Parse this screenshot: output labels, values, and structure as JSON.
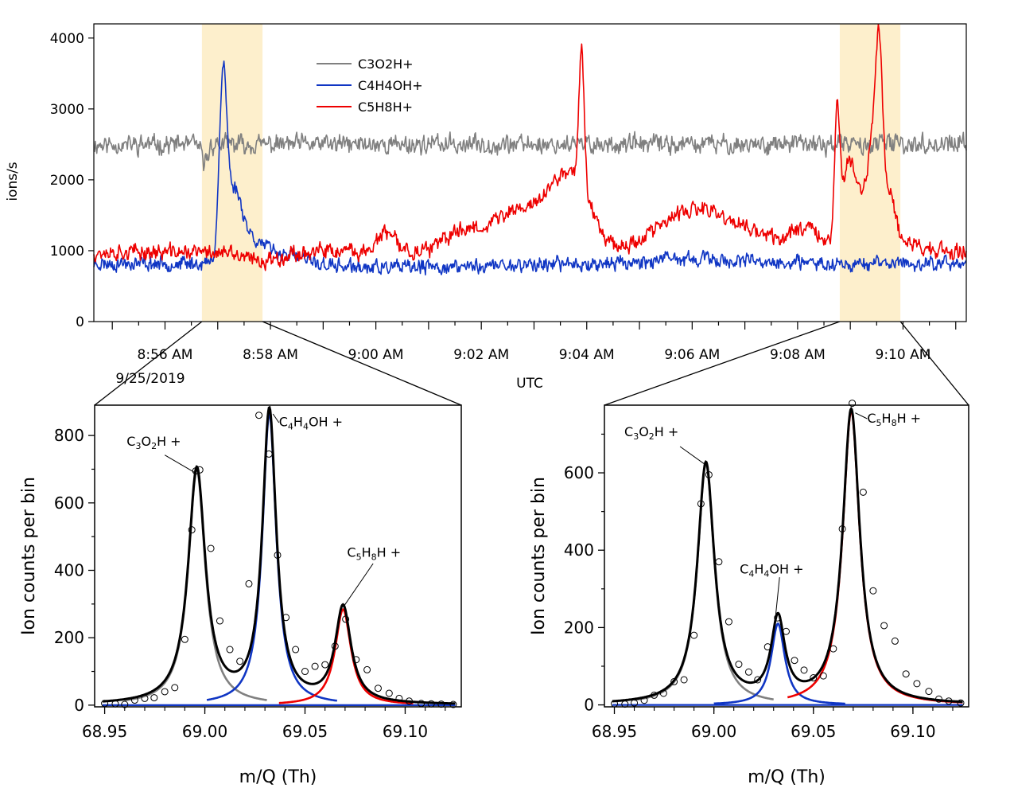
{
  "chart_data": [
    {
      "type": "line",
      "name": "timeseries",
      "ylabel": "ions/s",
      "xlabel": "UTC",
      "ylim": [
        0,
        4200
      ],
      "xlim_minutes": [
        -0.35,
        16.2
      ],
      "y_ticks": [
        0,
        1000,
        2000,
        3000,
        4000
      ],
      "x_ticks": [
        {
          "minute": 1,
          "label": "8:56 AM"
        },
        {
          "minute": 3,
          "label": "8:58 AM"
        },
        {
          "minute": 5,
          "label": "9:00 AM"
        },
        {
          "minute": 7,
          "label": "9:02 AM"
        },
        {
          "minute": 9,
          "label": "9:04 AM"
        },
        {
          "minute": 11,
          "label": "9:06 AM"
        },
        {
          "minute": 13,
          "label": "9:08 AM"
        },
        {
          "minute": 15,
          "label": "9:10 AM"
        }
      ],
      "date_label": "9/25/2019",
      "x_origin_time": "8:55 AM",
      "highlight_windows_minutes": [
        [
          1.7,
          2.85
        ],
        [
          13.8,
          14.95
        ]
      ],
      "highlight_color": "#fdefcc",
      "legend": [
        {
          "name": "C3O2H+",
          "color": "#808080"
        },
        {
          "name": "C4H4OH+",
          "color": "#1036c4"
        },
        {
          "name": "C5H8H+",
          "color": "#ee0000"
        }
      ],
      "series": [
        {
          "name": "C3O2H+",
          "color": "#808080",
          "baseline": 2500,
          "noise": 260,
          "seed": 11,
          "features": [
            [
              1.75,
              -250,
              0.06
            ]
          ]
        },
        {
          "name": "C4H4OH+",
          "color": "#1036c4",
          "baseline": 820,
          "noise": 200,
          "seed": 23,
          "features": [
            [
              2.1,
              2400,
              0.07
            ],
            [
              2.3,
              900,
              0.15
            ],
            [
              2.6,
              300,
              0.25
            ],
            [
              3.2,
              150,
              0.4
            ],
            [
              5.5,
              -60,
              1.5
            ],
            [
              11.0,
              60,
              0.8
            ]
          ]
        },
        {
          "name": "C5H8H+",
          "color": "#ee0000",
          "baseline": 980,
          "noise": 220,
          "seed": 37,
          "features": [
            [
              2.8,
              -120,
              0.35
            ],
            [
              5.2,
              260,
              0.18
            ],
            [
              6.6,
              250,
              0.3
            ],
            [
              7.4,
              320,
              0.45
            ],
            [
              8.2,
              520,
              0.55
            ],
            [
              8.75,
              800,
              0.35
            ],
            [
              8.9,
              1900,
              0.05
            ],
            [
              10.3,
              140,
              0.4
            ],
            [
              11.1,
              540,
              0.55
            ],
            [
              12.2,
              220,
              0.6
            ],
            [
              13.2,
              330,
              0.25
            ],
            [
              13.75,
              1800,
              0.05
            ],
            [
              13.95,
              1000,
              0.12
            ],
            [
              14.2,
              700,
              0.18
            ],
            [
              14.45,
              1300,
              0.1
            ],
            [
              14.55,
              1850,
              0.06
            ],
            [
              14.7,
              800,
              0.12
            ],
            [
              15.0,
              160,
              0.3
            ]
          ]
        }
      ]
    },
    {
      "type": "line",
      "name": "spectrum-left",
      "xlabel": "m/Q (Th)",
      "ylabel": "Ion counts per bin",
      "xlim": [
        68.945,
        69.128
      ],
      "ylim": [
        -5,
        890
      ],
      "x_ticks": [
        68.95,
        69.0,
        69.05,
        69.1
      ],
      "x_tick_labels": [
        "68.95",
        "69.00",
        "69.05",
        "69.10"
      ],
      "y_ticks": [
        0,
        200,
        400,
        600,
        800
      ],
      "peaks": [
        {
          "name": "C3O2H+",
          "center": 68.996,
          "height": 695,
          "width": 0.0052,
          "color": "#808080",
          "range": [
            68.96,
            69.031
          ]
        },
        {
          "name": "C4H4OH+",
          "center": 69.0322,
          "height": 865,
          "width": 0.0042,
          "color": "#1036c4",
          "range": [
            69.001,
            69.066
          ]
        },
        {
          "name": "C5H8H+",
          "center": 69.069,
          "height": 284,
          "width": 0.0048,
          "color": "#ee0000",
          "range": [
            69.037,
            69.104
          ]
        }
      ],
      "fit_color": "#000000",
      "points_x": [
        68.95,
        68.9553,
        68.96,
        68.965,
        68.97,
        68.9747,
        68.98,
        68.985,
        68.99,
        68.9935,
        68.9955,
        68.9975,
        69.003,
        69.0075,
        69.0125,
        69.0175,
        69.022,
        69.027,
        69.032,
        69.0363,
        69.0405,
        69.0453,
        69.05,
        69.055,
        69.06,
        69.065,
        69.0703,
        69.0755,
        69.081,
        69.0865,
        69.092,
        69.097,
        69.102,
        69.108,
        69.113,
        69.118,
        69.124
      ],
      "points_y": [
        5,
        4,
        2,
        15,
        20,
        22,
        40,
        52,
        195,
        520,
        695,
        698,
        465,
        250,
        165,
        130,
        360,
        860,
        745,
        445,
        260,
        165,
        100,
        115,
        120,
        175,
        255,
        135,
        105,
        50,
        35,
        20,
        12,
        5,
        4,
        3,
        2
      ],
      "labels": [
        {
          "text": "C3O2H+",
          "base": "C",
          "parts": [
            [
              "3",
              true
            ],
            [
              "O",
              false
            ],
            [
              "2",
              true
            ],
            [
              "H +",
              false
            ]
          ],
          "tx": 68.961,
          "ty": 770,
          "lx0": 68.98,
          "ly0": 742,
          "lx1": 68.995,
          "ly1": 690
        },
        {
          "text": "C4H4OH+",
          "base": "C",
          "parts": [
            [
              "4",
              true
            ],
            [
              "H",
              false
            ],
            [
              "4",
              true
            ],
            [
              "OH +",
              false
            ]
          ],
          "tx": 69.037,
          "ty": 828,
          "lx0": 69.037,
          "ly0": 838,
          "lx1": 69.034,
          "ly1": 864
        },
        {
          "text": "C5H8H+",
          "base": "C",
          "parts": [
            [
              "5",
              true
            ],
            [
              "H",
              false
            ],
            [
              "8",
              true
            ],
            [
              "H +",
              false
            ]
          ],
          "tx": 69.071,
          "ty": 440,
          "lx0": 69.084,
          "ly0": 420,
          "lx1": 69.069,
          "ly1": 290
        }
      ]
    },
    {
      "type": "line",
      "name": "spectrum-right",
      "xlabel": "m/Q (Th)",
      "ylabel": "Ion counts per bin",
      "xlim": [
        68.945,
        69.128
      ],
      "ylim": [
        -5,
        775
      ],
      "x_ticks": [
        68.95,
        69.0,
        69.05,
        69.1
      ],
      "x_tick_labels": [
        "68.95",
        "69.00",
        "69.05",
        "69.10"
      ],
      "y_ticks": [
        0,
        200,
        400,
        600
      ],
      "peaks": [
        {
          "name": "C3O2H+",
          "center": 68.996,
          "height": 622,
          "width": 0.0052,
          "color": "#808080",
          "range": [
            68.96,
            69.03
          ]
        },
        {
          "name": "C4H4OH+",
          "center": 69.0322,
          "height": 210,
          "width": 0.0042,
          "color": "#1036c4",
          "range": [
            69.0,
            69.066
          ]
        },
        {
          "name": "C5H8H+",
          "center": 69.069,
          "height": 760,
          "width": 0.0052,
          "color": "#ee0000",
          "range": [
            69.037,
            69.125
          ]
        }
      ],
      "fit_color": "#000000",
      "points_x": [
        68.95,
        68.9553,
        68.96,
        68.965,
        68.97,
        68.9747,
        68.98,
        68.985,
        68.99,
        68.9935,
        68.9975,
        69.0025,
        69.0075,
        69.0125,
        69.0175,
        69.022,
        69.027,
        69.032,
        69.0363,
        69.0405,
        69.0453,
        69.05,
        69.055,
        69.06,
        69.0645,
        69.0695,
        69.075,
        69.08,
        69.0855,
        69.091,
        69.0965,
        69.102,
        69.108,
        69.113,
        69.118,
        69.124
      ],
      "points_y": [
        3,
        2,
        5,
        12,
        25,
        30,
        60,
        65,
        180,
        520,
        595,
        370,
        215,
        105,
        85,
        65,
        150,
        225,
        190,
        115,
        90,
        70,
        75,
        145,
        455,
        780,
        550,
        295,
        205,
        165,
        80,
        55,
        35,
        15,
        10,
        5
      ],
      "labels": [
        {
          "text": "C3O2H+",
          "base": "C",
          "parts": [
            [
              "3",
              true
            ],
            [
              "O",
              false
            ],
            [
              "2",
              true
            ],
            [
              "H +",
              false
            ]
          ],
          "tx": 68.955,
          "ty": 695,
          "lx0": 68.983,
          "ly0": 668,
          "lx1": 68.996,
          "ly1": 620
        },
        {
          "text": "C4H4OH+",
          "base": "C",
          "parts": [
            [
              "4",
              true
            ],
            [
              "H",
              false
            ],
            [
              "4",
              true
            ],
            [
              "OH +",
              false
            ]
          ],
          "tx": 69.013,
          "ty": 340,
          "lx0": 69.033,
          "ly0": 330,
          "lx1": 69.031,
          "ly1": 230
        },
        {
          "text": "C5H8H+",
          "base": "C",
          "parts": [
            [
              "5",
              true
            ],
            [
              "H",
              false
            ],
            [
              "8",
              true
            ],
            [
              "H +",
              false
            ]
          ],
          "tx": 69.077,
          "ty": 730,
          "lx0": 69.077,
          "ly0": 740,
          "lx1": 69.071,
          "ly1": 755
        }
      ]
    }
  ]
}
